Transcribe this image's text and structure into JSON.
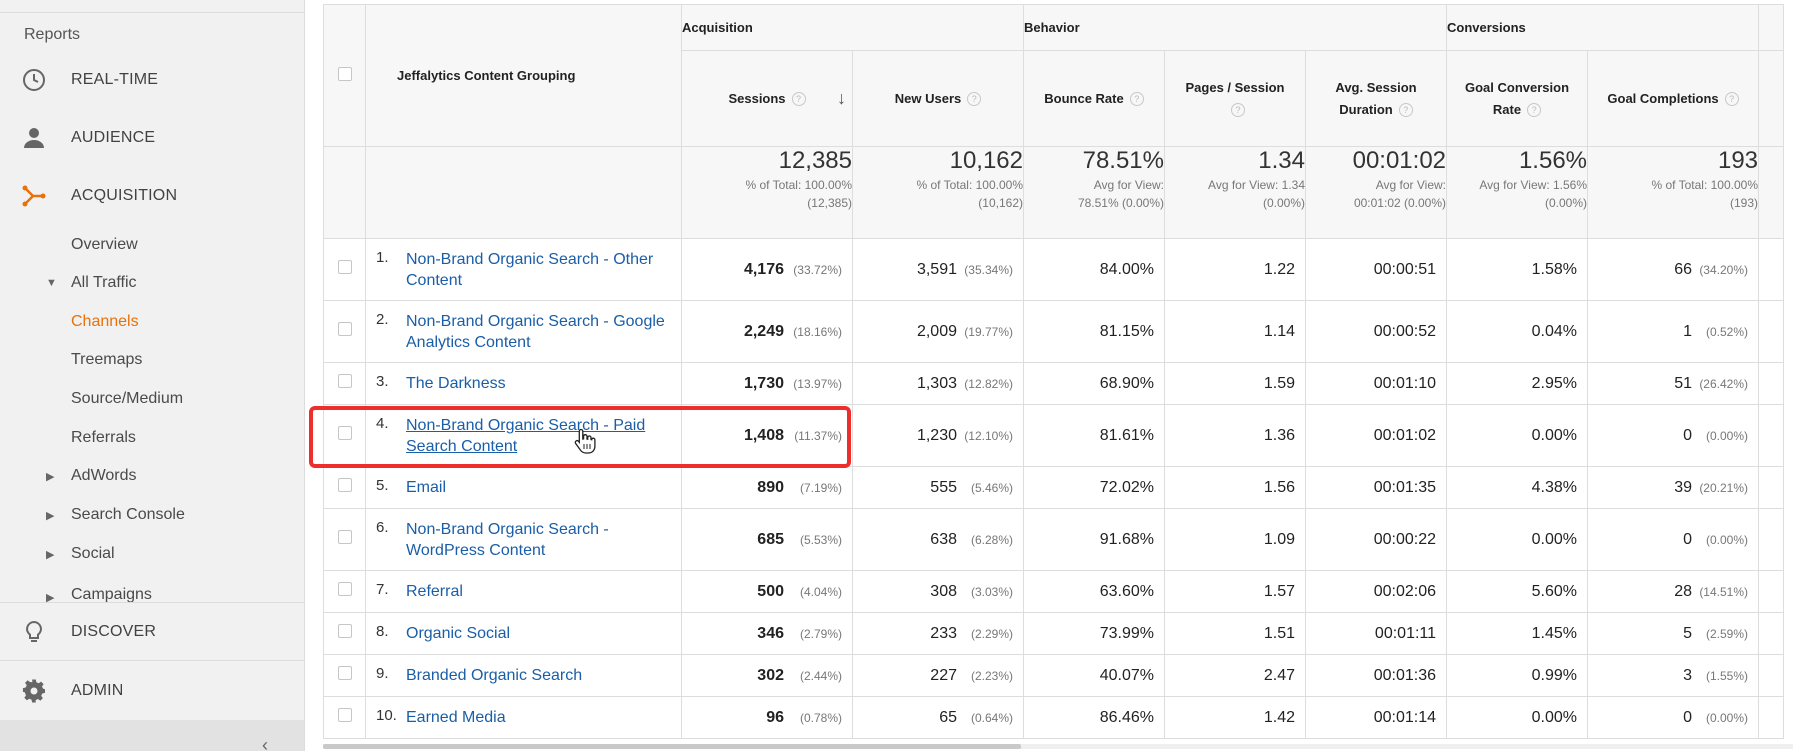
{
  "sidebar": {
    "reports_label": "Reports",
    "main_items": [
      {
        "label": "REAL-TIME",
        "icon": "clock-icon"
      },
      {
        "label": "AUDIENCE",
        "icon": "person-icon"
      },
      {
        "label": "ACQUISITION",
        "icon": "acquisition-icon"
      }
    ],
    "acquisition_items": {
      "overview": "Overview",
      "all_traffic": "All Traffic",
      "channels": "Channels",
      "treemaps": "Treemaps",
      "source_medium": "Source/Medium",
      "referrals": "Referrals",
      "adwords": "AdWords",
      "search_console": "Search Console",
      "social": "Social",
      "campaigns": "Campaigns"
    },
    "discover": "DISCOVER",
    "admin": "ADMIN",
    "accent_color": "#e8710a"
  },
  "table": {
    "groups": {
      "acquisition": "Acquisition",
      "behavior": "Behavior",
      "conversions": "Conversions"
    },
    "headers": {
      "dimension": "Jeffalytics Content Grouping",
      "sessions": "Sessions",
      "new_users": "New Users",
      "bounce_rate": "Bounce Rate",
      "pages_session": "Pages / Session",
      "avg_session_duration": "Avg. Session Duration",
      "goal_conversion_rate": "Goal Conversion Rate",
      "goal_completions": "Goal Completions"
    },
    "totals": {
      "sessions": {
        "value": "12,385",
        "line1": "% of Total: 100.00%",
        "line2": "(12,385)"
      },
      "new_users": {
        "value": "10,162",
        "line1": "% of Total: 100.00%",
        "line2": "(10,162)"
      },
      "bounce_rate": {
        "value": "78.51%",
        "line1": "Avg for View:",
        "line2": "78.51% (0.00%)"
      },
      "pages_session": {
        "value": "1.34",
        "line1": "Avg for View: 1.34",
        "line2": "(0.00%)"
      },
      "avg_session_duration": {
        "value": "00:01:02",
        "line1": "Avg for View:",
        "line2": "00:01:02 (0.00%)"
      },
      "goal_conversion_rate": {
        "value": "1.56%",
        "line1": "Avg for View: 1.56%",
        "line2": "(0.00%)"
      },
      "goal_completions": {
        "value": "193",
        "line1": "% of Total: 100.00%",
        "line2": "(193)"
      }
    },
    "rows": [
      {
        "idx": "1.",
        "name": "Non-Brand Organic Search - Other Content",
        "sessions": "4,176",
        "sessions_pct": "(33.72%)",
        "new_users": "3,591",
        "new_users_pct": "(35.34%)",
        "bounce_rate": "84.00%",
        "pages_session": "1.22",
        "duration": "00:00:51",
        "conv_rate": "1.58%",
        "completions": "66",
        "completions_pct": "(34.20%)"
      },
      {
        "idx": "2.",
        "name": "Non-Brand Organic Search - Google Analytics Content",
        "sessions": "2,249",
        "sessions_pct": "(18.16%)",
        "new_users": "2,009",
        "new_users_pct": "(19.77%)",
        "bounce_rate": "81.15%",
        "pages_session": "1.14",
        "duration": "00:00:52",
        "conv_rate": "0.04%",
        "completions": "1",
        "completions_pct": "(0.52%)"
      },
      {
        "idx": "3.",
        "name": "The Darkness",
        "sessions": "1,730",
        "sessions_pct": "(13.97%)",
        "new_users": "1,303",
        "new_users_pct": "(12.82%)",
        "bounce_rate": "68.90%",
        "pages_session": "1.59",
        "duration": "00:01:10",
        "conv_rate": "2.95%",
        "completions": "51",
        "completions_pct": "(26.42%)"
      },
      {
        "idx": "4.",
        "name": "Non-Brand Organic Search - Paid Search Content",
        "sessions": "1,408",
        "sessions_pct": "(11.37%)",
        "new_users": "1,230",
        "new_users_pct": "(12.10%)",
        "bounce_rate": "81.61%",
        "pages_session": "1.36",
        "duration": "00:01:02",
        "conv_rate": "0.00%",
        "completions": "0",
        "completions_pct": "(0.00%)"
      },
      {
        "idx": "5.",
        "name": "Email",
        "sessions": "890",
        "sessions_pct": "(7.19%)",
        "new_users": "555",
        "new_users_pct": "(5.46%)",
        "bounce_rate": "72.02%",
        "pages_session": "1.56",
        "duration": "00:01:35",
        "conv_rate": "4.38%",
        "completions": "39",
        "completions_pct": "(20.21%)"
      },
      {
        "idx": "6.",
        "name": "Non-Brand Organic Search - WordPress Content",
        "sessions": "685",
        "sessions_pct": "(5.53%)",
        "new_users": "638",
        "new_users_pct": "(6.28%)",
        "bounce_rate": "91.68%",
        "pages_session": "1.09",
        "duration": "00:00:22",
        "conv_rate": "0.00%",
        "completions": "0",
        "completions_pct": "(0.00%)"
      },
      {
        "idx": "7.",
        "name": "Referral",
        "sessions": "500",
        "sessions_pct": "(4.04%)",
        "new_users": "308",
        "new_users_pct": "(3.03%)",
        "bounce_rate": "63.60%",
        "pages_session": "1.57",
        "duration": "00:02:06",
        "conv_rate": "5.60%",
        "completions": "28",
        "completions_pct": "(14.51%)"
      },
      {
        "idx": "8.",
        "name": "Organic Social",
        "sessions": "346",
        "sessions_pct": "(2.79%)",
        "new_users": "233",
        "new_users_pct": "(2.29%)",
        "bounce_rate": "73.99%",
        "pages_session": "1.51",
        "duration": "00:01:11",
        "conv_rate": "1.45%",
        "completions": "5",
        "completions_pct": "(2.59%)"
      },
      {
        "idx": "9.",
        "name": "Branded Organic Search",
        "sessions": "302",
        "sessions_pct": "(2.44%)",
        "new_users": "227",
        "new_users_pct": "(2.23%)",
        "bounce_rate": "40.07%",
        "pages_session": "2.47",
        "duration": "00:01:36",
        "conv_rate": "0.99%",
        "completions": "3",
        "completions_pct": "(1.55%)"
      },
      {
        "idx": "10.",
        "name": "Earned Media",
        "sessions": "96",
        "sessions_pct": "(0.78%)",
        "new_users": "65",
        "new_users_pct": "(0.64%)",
        "bounce_rate": "86.46%",
        "pages_session": "1.42",
        "duration": "00:01:14",
        "conv_rate": "0.00%",
        "completions": "0",
        "completions_pct": "(0.00%)"
      }
    ],
    "link_color": "#1a5ea8",
    "highlight_color": "#ee2d2d"
  }
}
